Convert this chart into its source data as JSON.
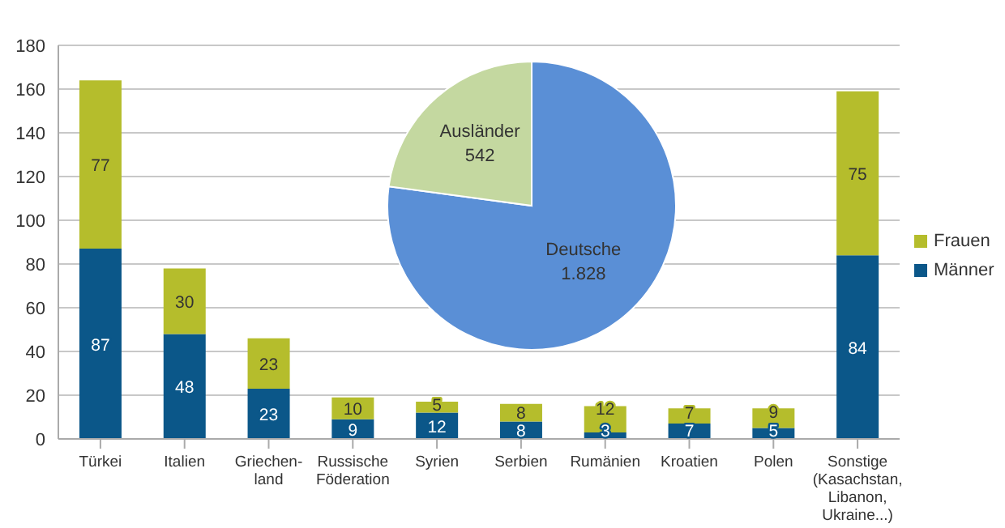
{
  "chart_data": [
    {
      "type": "bar",
      "stacked": true,
      "categories": [
        "Türkei",
        "Italien",
        "Griechen-\nland",
        "Russische\nFöderation",
        "Syrien",
        "Serbien",
        "Rumänien",
        "Kroatien",
        "Polen",
        "Sonstige\n(Kasachstan,\nLibanon,\nUkraine...)"
      ],
      "series": [
        {
          "name": "Männer",
          "color": "#0b5789",
          "values": [
            87,
            48,
            23,
            9,
            12,
            8,
            3,
            7,
            5,
            84
          ]
        },
        {
          "name": "Frauen",
          "color": "#b5bd2c",
          "values": [
            77,
            30,
            23,
            10,
            5,
            8,
            12,
            7,
            9,
            75
          ]
        }
      ],
      "ylim": [
        0,
        180
      ],
      "yticks": [
        0,
        20,
        40,
        60,
        80,
        100,
        120,
        140,
        160,
        180
      ],
      "grid": "y",
      "legend": "right",
      "data_labels": true
    },
    {
      "type": "pie",
      "categories": [
        "Deutsche",
        "Ausländer"
      ],
      "values": [
        1828,
        542
      ],
      "value_labels": [
        "1.828",
        "542"
      ],
      "colors": [
        "#5a8fd6",
        "#c4d8a0"
      ]
    }
  ]
}
